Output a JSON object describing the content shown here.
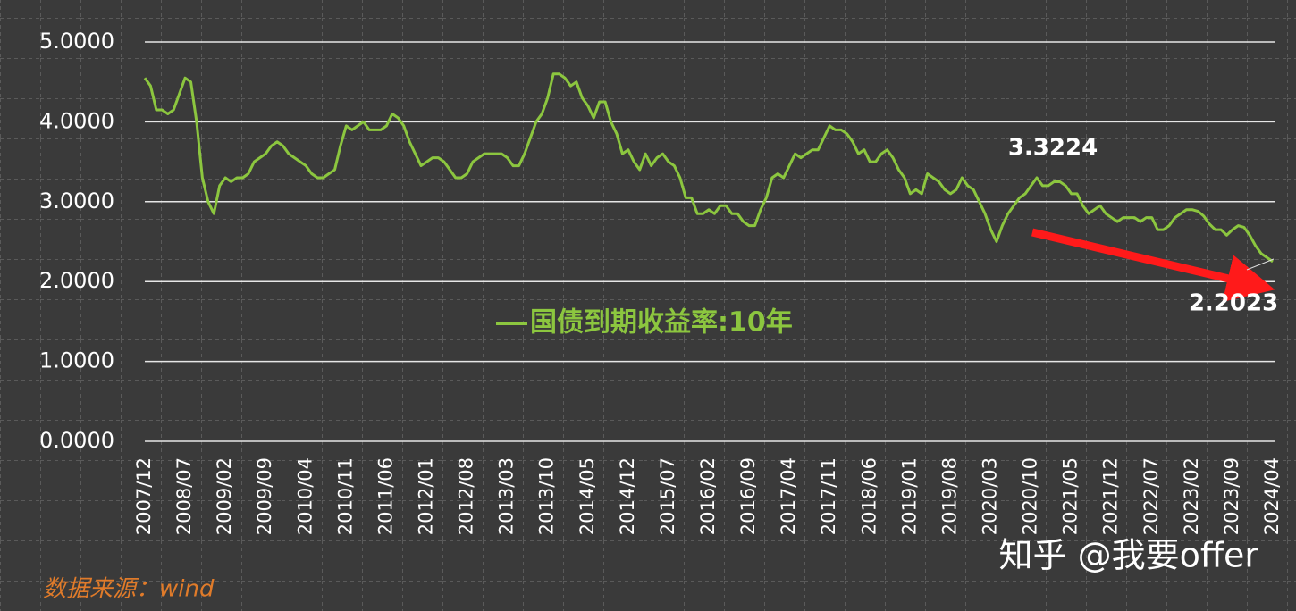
{
  "chart_data": {
    "type": "line",
    "source": "数据来源：wind",
    "watermark": "知乎 @我要offer",
    "annotations": [
      "3.3224",
      "2.2023"
    ],
    "categories": [
      "2007/12",
      null,
      null,
      null,
      null,
      null,
      null,
      "2008/07",
      null,
      null,
      null,
      null,
      null,
      null,
      "2009/02",
      null,
      null,
      null,
      null,
      null,
      null,
      "2009/09",
      null,
      null,
      null,
      null,
      null,
      null,
      "2010/04",
      null,
      null,
      null,
      null,
      null,
      null,
      "2010/11",
      null,
      null,
      null,
      null,
      null,
      null,
      "2011/06",
      null,
      null,
      null,
      null,
      null,
      null,
      "2012/01",
      null,
      null,
      null,
      null,
      null,
      null,
      "2012/08",
      null,
      null,
      null,
      null,
      null,
      null,
      "2013/03",
      null,
      null,
      null,
      null,
      null,
      null,
      "2013/10",
      null,
      null,
      null,
      null,
      null,
      null,
      "2014/05",
      null,
      null,
      null,
      null,
      null,
      null,
      "2014/12",
      null,
      null,
      null,
      null,
      null,
      null,
      "2015/07",
      null,
      null,
      null,
      null,
      null,
      null,
      "2016/02",
      null,
      null,
      null,
      null,
      null,
      null,
      "2016/09",
      null,
      null,
      null,
      null,
      null,
      null,
      "2017/04",
      null,
      null,
      null,
      null,
      null,
      null,
      "2017/11",
      null,
      null,
      null,
      null,
      null,
      null,
      "2018/06",
      null,
      null,
      null,
      null,
      null,
      null,
      "2019/01",
      null,
      null,
      null,
      null,
      null,
      null,
      "2019/08",
      null,
      null,
      null,
      null,
      null,
      null,
      "2020/03",
      null,
      null,
      null,
      null,
      null,
      null,
      "2020/10",
      null,
      null,
      null,
      null,
      null,
      null,
      "2021/05",
      null,
      null,
      null,
      null,
      null,
      null,
      "2021/12",
      null,
      null,
      null,
      null,
      null,
      null,
      "2022/07",
      null,
      null,
      null,
      null,
      null,
      null,
      "2023/02",
      null,
      null,
      null,
      null,
      null,
      null,
      "2023/09",
      null,
      null,
      null,
      null,
      null,
      null,
      "2024/04"
    ],
    "series": [
      {
        "name": "国债到期收益率:10年",
        "color": "#8cc63f",
        "values": [
          4.55,
          4.45,
          4.15,
          4.15,
          4.1,
          4.15,
          4.35,
          4.55,
          4.5,
          4.0,
          3.3,
          3.0,
          2.85,
          3.2,
          3.3,
          3.25,
          3.3,
          3.3,
          3.35,
          3.5,
          3.55,
          3.6,
          3.7,
          3.75,
          3.7,
          3.6,
          3.55,
          3.5,
          3.45,
          3.35,
          3.3,
          3.3,
          3.35,
          3.4,
          3.7,
          3.95,
          3.9,
          3.95,
          4.0,
          3.9,
          3.9,
          3.9,
          3.95,
          4.1,
          4.05,
          3.95,
          3.75,
          3.6,
          3.45,
          3.5,
          3.55,
          3.55,
          3.5,
          3.4,
          3.3,
          3.3,
          3.35,
          3.5,
          3.55,
          3.6,
          3.6,
          3.6,
          3.6,
          3.55,
          3.45,
          3.45,
          3.6,
          3.8,
          4.0,
          4.1,
          4.3,
          4.6,
          4.6,
          4.55,
          4.45,
          4.5,
          4.3,
          4.2,
          4.05,
          4.25,
          4.25,
          4.0,
          3.85,
          3.6,
          3.65,
          3.5,
          3.4,
          3.6,
          3.45,
          3.55,
          3.6,
          3.5,
          3.45,
          3.3,
          3.05,
          3.05,
          2.85,
          2.85,
          2.9,
          2.85,
          2.95,
          2.95,
          2.85,
          2.85,
          2.75,
          2.7,
          2.7,
          2.9,
          3.05,
          3.3,
          3.35,
          3.3,
          3.45,
          3.6,
          3.55,
          3.6,
          3.65,
          3.65,
          3.8,
          3.95,
          3.9,
          3.9,
          3.85,
          3.75,
          3.6,
          3.65,
          3.5,
          3.5,
          3.6,
          3.65,
          3.55,
          3.4,
          3.3,
          3.1,
          3.15,
          3.1,
          3.35,
          3.3,
          3.25,
          3.15,
          3.1,
          3.15,
          3.3,
          3.2,
          3.15,
          3.0,
          2.85,
          2.65,
          2.5,
          2.7,
          2.85,
          2.95,
          3.05,
          3.1,
          3.2,
          3.3,
          3.2,
          3.2,
          3.25,
          3.25,
          3.2,
          3.1,
          3.1,
          2.95,
          2.85,
          2.9,
          2.95,
          2.85,
          2.8,
          2.75,
          2.8,
          2.8,
          2.8,
          2.75,
          2.8,
          2.8,
          2.65,
          2.65,
          2.7,
          2.8,
          2.85,
          2.9,
          2.9,
          2.88,
          2.82,
          2.72,
          2.65,
          2.65,
          2.58,
          2.65,
          2.7,
          2.68,
          2.58,
          2.45,
          2.35,
          2.3,
          2.25
        ]
      }
    ],
    "ylim": [
      0,
      5
    ],
    "yticks": [
      {
        "value": 0,
        "label": "0.0000"
      },
      {
        "value": 1,
        "label": "1.0000"
      },
      {
        "value": 2,
        "label": "2.0000"
      },
      {
        "value": 3,
        "label": "3.0000"
      },
      {
        "value": 4,
        "label": "4.0000"
      },
      {
        "value": 5,
        "label": "5.0000"
      }
    ],
    "grid": true
  }
}
